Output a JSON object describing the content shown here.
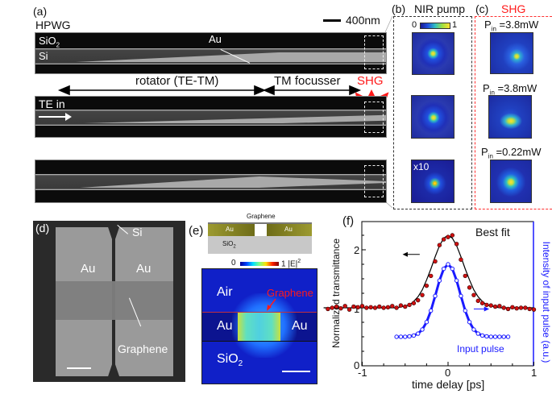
{
  "panel_a": {
    "label": "(a)",
    "title": "HPWG",
    "scale_bar": "400nm",
    "strip1": {
      "sio2": "SiO",
      "sio2_sub": "2",
      "si": "Si",
      "au": "Au"
    },
    "rotator": "rotator (TE-TM)",
    "focusser": "TM focusser",
    "shg": "SHG",
    "te_in": "TE in",
    "shg_color": "#ff1a1a"
  },
  "panel_b": {
    "label": "(b)",
    "title": "NIR pump",
    "cbar_min": "0",
    "cbar_max": "1",
    "x10": "x10"
  },
  "panel_c": {
    "label": "(c)",
    "title": "SHG",
    "p1": {
      "p": "P",
      "sub": "in",
      "val": " =3.8mW"
    },
    "p2": {
      "p": "P",
      "sub": "in",
      "val": " =3.8mW"
    },
    "p3": {
      "p": "P",
      "sub": "in",
      "val": " =0.22mW"
    }
  },
  "panel_d": {
    "label": "(d)",
    "si": "Si",
    "au_left": "Au",
    "au_right": "Au",
    "graphene": "Graphene"
  },
  "panel_e": {
    "label": "(e)",
    "graphene_top": "Graphene",
    "au_small_l": "Au",
    "au_small_r": "Au",
    "sio2_small": "SiO",
    "sio2_small_sub": "2",
    "cbar_min": "0",
    "cbar_max": "1",
    "cbar_label": "|E|",
    "cbar_sup": "2",
    "air": "Air",
    "graphene": "Graphene",
    "au_l": "Au",
    "au_r": "Au",
    "sio2": "SiO",
    "sio2_sub": "2"
  },
  "chart_data": {
    "type": "scatter",
    "panel_label": "(f)",
    "xlabel": "time delay [ps]",
    "ylabel": "Normalized transmittance",
    "ylabel_right": "Intensity of input pulse (a.u.)",
    "xlim": [
      -1.45,
      1.0
    ],
    "ylim": [
      0,
      2.5
    ],
    "xticks": [
      "-1",
      "0",
      "1"
    ],
    "yticks": [
      "0",
      "1",
      "2"
    ],
    "annotation": "Best fit",
    "colors": {
      "measured": "#d01010",
      "fit": "#000000",
      "input": "#1a1aff"
    },
    "measured": {
      "x": [
        -1.4,
        -1.35,
        -1.3,
        -1.25,
        -1.2,
        -1.15,
        -1.1,
        -1.05,
        -1.0,
        -0.95,
        -0.9,
        -0.85,
        -0.8,
        -0.75,
        -0.7,
        -0.65,
        -0.6,
        -0.55,
        -0.5,
        -0.45,
        -0.4,
        -0.35,
        -0.3,
        -0.25,
        -0.2,
        -0.15,
        -0.1,
        -0.05,
        0,
        0.05,
        0.1,
        0.15,
        0.2,
        0.25,
        0.3,
        0.35,
        0.4,
        0.45,
        0.5,
        0.55,
        0.6,
        0.65,
        0.7,
        0.75,
        0.8,
        0.85,
        0.9,
        0.95,
        1.0
      ],
      "y": [
        0.98,
        1.0,
        1.02,
        0.99,
        1.03,
        0.97,
        1.02,
        1.01,
        1.03,
        1.0,
        1.01,
        1.0,
        1.02,
        1.0,
        1.01,
        1.03,
        1.0,
        1.04,
        1.02,
        1.05,
        1.08,
        1.13,
        1.22,
        1.38,
        1.55,
        1.8,
        2.08,
        2.18,
        2.22,
        2.25,
        2.1,
        1.83,
        1.55,
        1.35,
        1.22,
        1.12,
        1.08,
        1.05,
        1.04,
        1.02,
        1.03,
        1.0,
        0.98,
        1.01,
        0.99,
        1.0,
        1.0,
        0.98,
        0.97
      ]
    },
    "fit": {
      "x": [
        -1.45,
        -0.6,
        -0.5,
        -0.45,
        -0.4,
        -0.35,
        -0.3,
        -0.25,
        -0.2,
        -0.15,
        -0.1,
        -0.05,
        0,
        0.05,
        0.1,
        0.15,
        0.2,
        0.25,
        0.3,
        0.35,
        0.4,
        0.45,
        0.5,
        0.6,
        1.0
      ],
      "y": [
        1.0,
        1.0,
        1.03,
        1.05,
        1.11,
        1.19,
        1.31,
        1.48,
        1.67,
        1.88,
        2.07,
        2.2,
        2.25,
        2.2,
        2.07,
        1.88,
        1.67,
        1.48,
        1.31,
        1.19,
        1.11,
        1.05,
        1.03,
        1.0,
        1.0
      ]
    },
    "input_pulse": {
      "name": "Input pulse",
      "x": [
        -0.6,
        -0.55,
        -0.5,
        -0.45,
        -0.4,
        -0.35,
        -0.3,
        -0.25,
        -0.2,
        -0.15,
        -0.1,
        -0.05,
        0,
        0.05,
        0.1,
        0.15,
        0.2,
        0.25,
        0.3,
        0.35,
        0.4,
        0.45,
        0.5,
        0.55,
        0.6,
        0.65,
        0.7
      ],
      "y": [
        0,
        0,
        0,
        0.006,
        0.017,
        0.044,
        0.1,
        0.203,
        0.36,
        0.563,
        0.775,
        0.938,
        1.0,
        0.938,
        0.775,
        0.563,
        0.36,
        0.203,
        0.1,
        0.044,
        0.017,
        0.006,
        0,
        0,
        0,
        0,
        0
      ]
    }
  }
}
